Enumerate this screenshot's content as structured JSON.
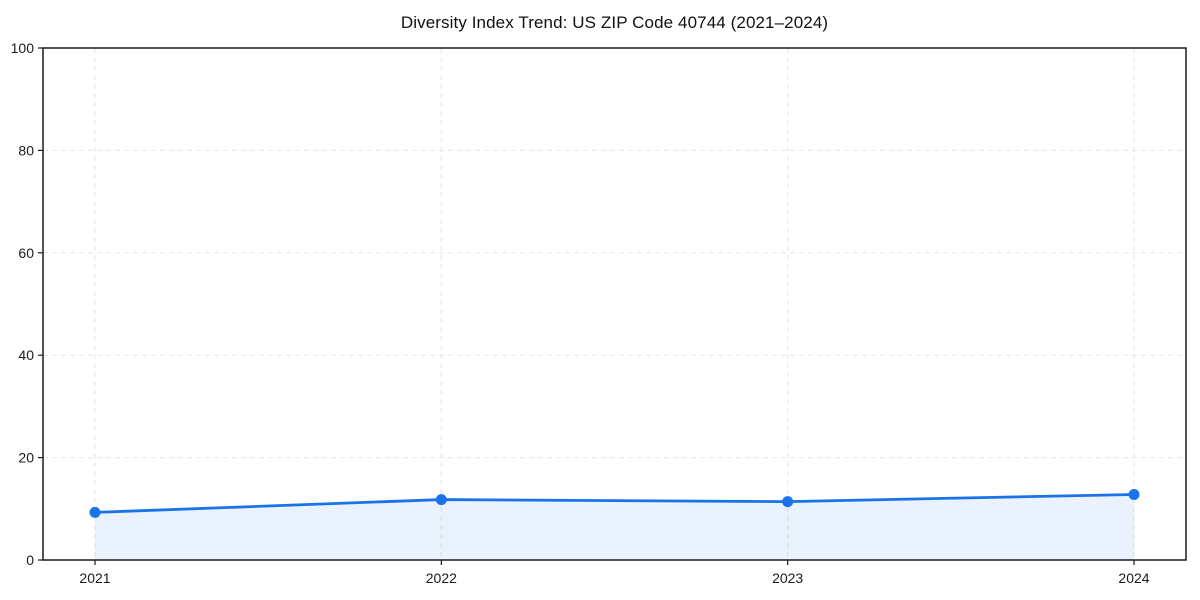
{
  "chart_data": {
    "type": "area",
    "title": "Diversity Index Trend: US ZIP Code 40744 (2021–2024)",
    "x": [
      "2021",
      "2022",
      "2023",
      "2024"
    ],
    "series": [
      {
        "name": "Diversity Index",
        "values": [
          9.3,
          11.8,
          11.4,
          12.8
        ]
      }
    ],
    "xlabel": "",
    "ylabel": "",
    "ylim": [
      0,
      100
    ],
    "yticks": [
      0,
      20,
      40,
      60,
      80,
      100
    ],
    "grid": "dashed",
    "legend_position": "none",
    "colors": {
      "line": "#1a73e8",
      "marker": "#1a73e8",
      "fill": "rgba(26,115,232,0.09)",
      "grid": "#e5e5e5",
      "axis": "#1a1a1a",
      "tick_text": "#1c1c1c"
    }
  }
}
